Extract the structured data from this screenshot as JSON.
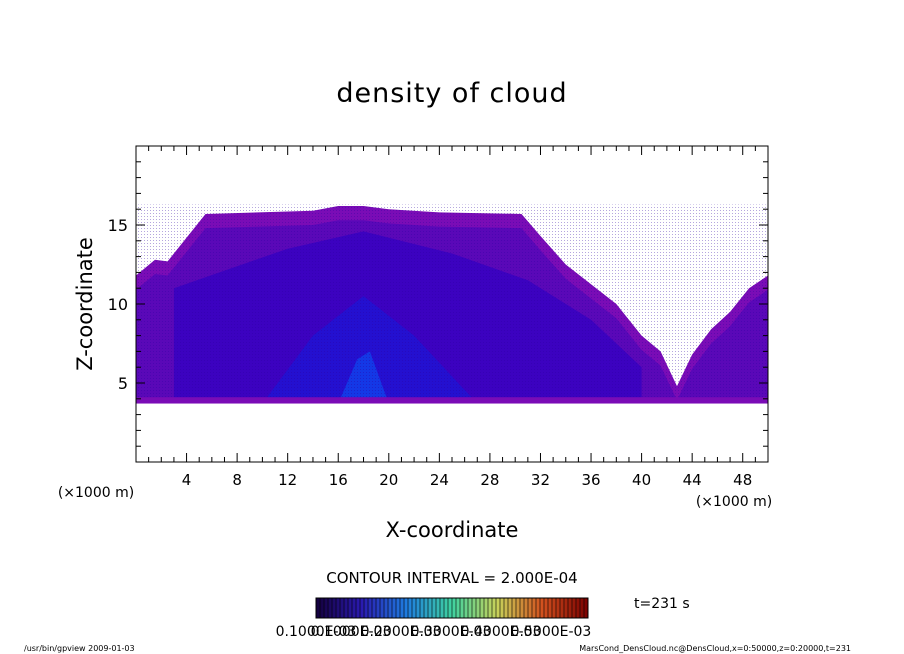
{
  "chart_data": {
    "type": "heatmap",
    "title": "density of cloud",
    "xlabel": "X-coordinate",
    "ylabel": "Z-coordinate",
    "x_unit": "(×1000 m)",
    "xlim": [
      0,
      50
    ],
    "ylim": [
      0,
      20
    ],
    "x_ticks": [
      4,
      8,
      12,
      16,
      20,
      24,
      28,
      32,
      36,
      40,
      44,
      48
    ],
    "y_ticks": [
      5,
      10,
      15
    ],
    "grid": false,
    "contour_interval": "CONTOUR INTERVAL = 2.000E-04",
    "time_label": "t=231 s",
    "colorbar_labels": [
      "0.1000E-03",
      "0.1000E-03",
      "0.2000E-03",
      "0.3000E-03",
      "0.4000E-03",
      "0.5000E-03"
    ],
    "colorbar_stops": [
      "#14003c",
      "#2a1ab0",
      "#1f7de0",
      "#3fd2a0",
      "#c8d25a",
      "#d2501e",
      "#7a0000"
    ],
    "fill_colors": {
      "outer": "#7a0cb6",
      "mid": "#5a08b8",
      "inner": "#3c02c0",
      "core": "#2410d0",
      "highlight": "#1438e6"
    },
    "cloud_top_profile": {
      "x": [
        0,
        1.5,
        2.5,
        5.5,
        14,
        16,
        18,
        20,
        24,
        30.5,
        32,
        34,
        38,
        40,
        41.5,
        42.8,
        44,
        45.5,
        47,
        48.5,
        50
      ],
      "z": [
        11.8,
        12.8,
        12.7,
        15.7,
        15.9,
        16.2,
        16.2,
        16.0,
        15.8,
        15.7,
        14.3,
        12.5,
        10.0,
        8.0,
        7.0,
        4.8,
        6.8,
        8.4,
        9.5,
        11.0,
        11.8
      ]
    },
    "cloud_base_z": 3.7
  },
  "footer": {
    "left": "/usr/bin/gpview   2009-01-03",
    "right": "MarsCond_DensCloud.nc@DensCloud,x=0:50000,z=0:20000,t=231"
  }
}
